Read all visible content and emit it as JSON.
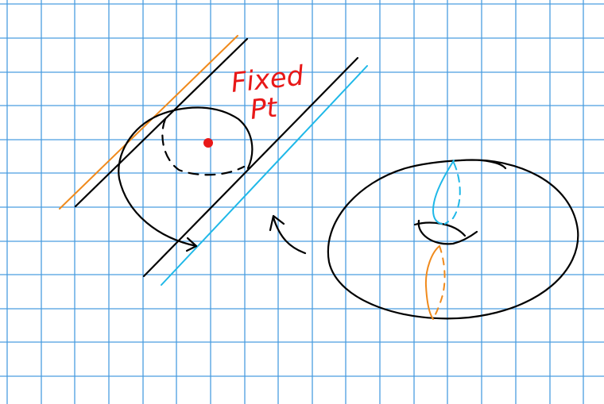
{
  "label": {
    "line1": "Fixed",
    "line2": "Pt"
  },
  "colors": {
    "grid": "#4a9de0",
    "black": "#000000",
    "orange": "#f08a1c",
    "cyan": "#1fb8e8",
    "red": "#e81818"
  }
}
